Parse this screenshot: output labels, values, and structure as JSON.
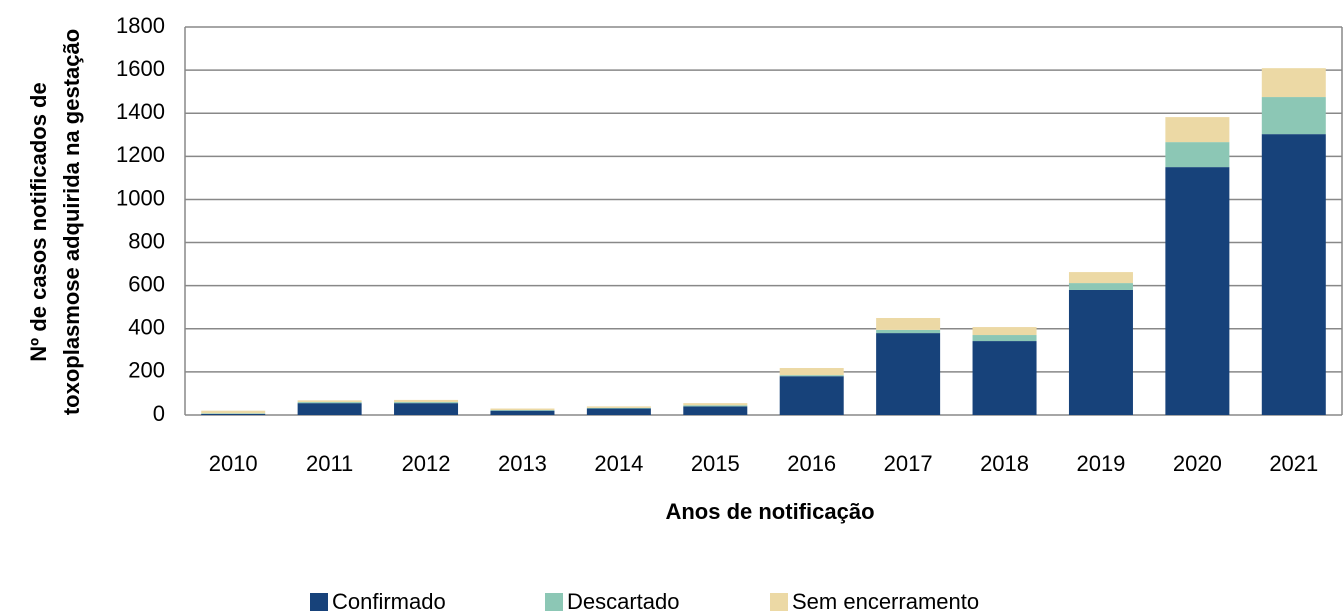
{
  "chart_data": {
    "type": "stacked_bar",
    "ylabel": [
      "Nº de casos notificados de",
      "toxoplasmose adquirida  na gestação"
    ],
    "xlabel": "Anos de notificação",
    "categories": [
      "2010",
      "2011",
      "2012",
      "2013",
      "2014",
      "2015",
      "2016",
      "2017",
      "2018",
      "2019",
      "2020",
      "2021"
    ],
    "series": [
      {
        "name": "Confirmado",
        "color": "#17427a",
        "values": [
          5,
          55,
          55,
          20,
          30,
          40,
          180,
          380,
          343,
          580,
          1150,
          1303
        ]
      },
      {
        "name": "Descartado",
        "color": "#8cc7b5",
        "values": [
          3,
          5,
          5,
          3,
          3,
          5,
          5,
          15,
          28,
          32,
          116,
          172
        ]
      },
      {
        "name": "Sem encerramento",
        "color": "#ecd9a5",
        "values": [
          12,
          8,
          10,
          7,
          7,
          10,
          33,
          55,
          37,
          51,
          116,
          134
        ]
      }
    ],
    "ylim": [
      0,
      1800
    ],
    "yticks": [
      0,
      200,
      400,
      600,
      800,
      1000,
      1200,
      1400,
      1600,
      1800
    ],
    "grid": true,
    "legend": "bottom"
  }
}
